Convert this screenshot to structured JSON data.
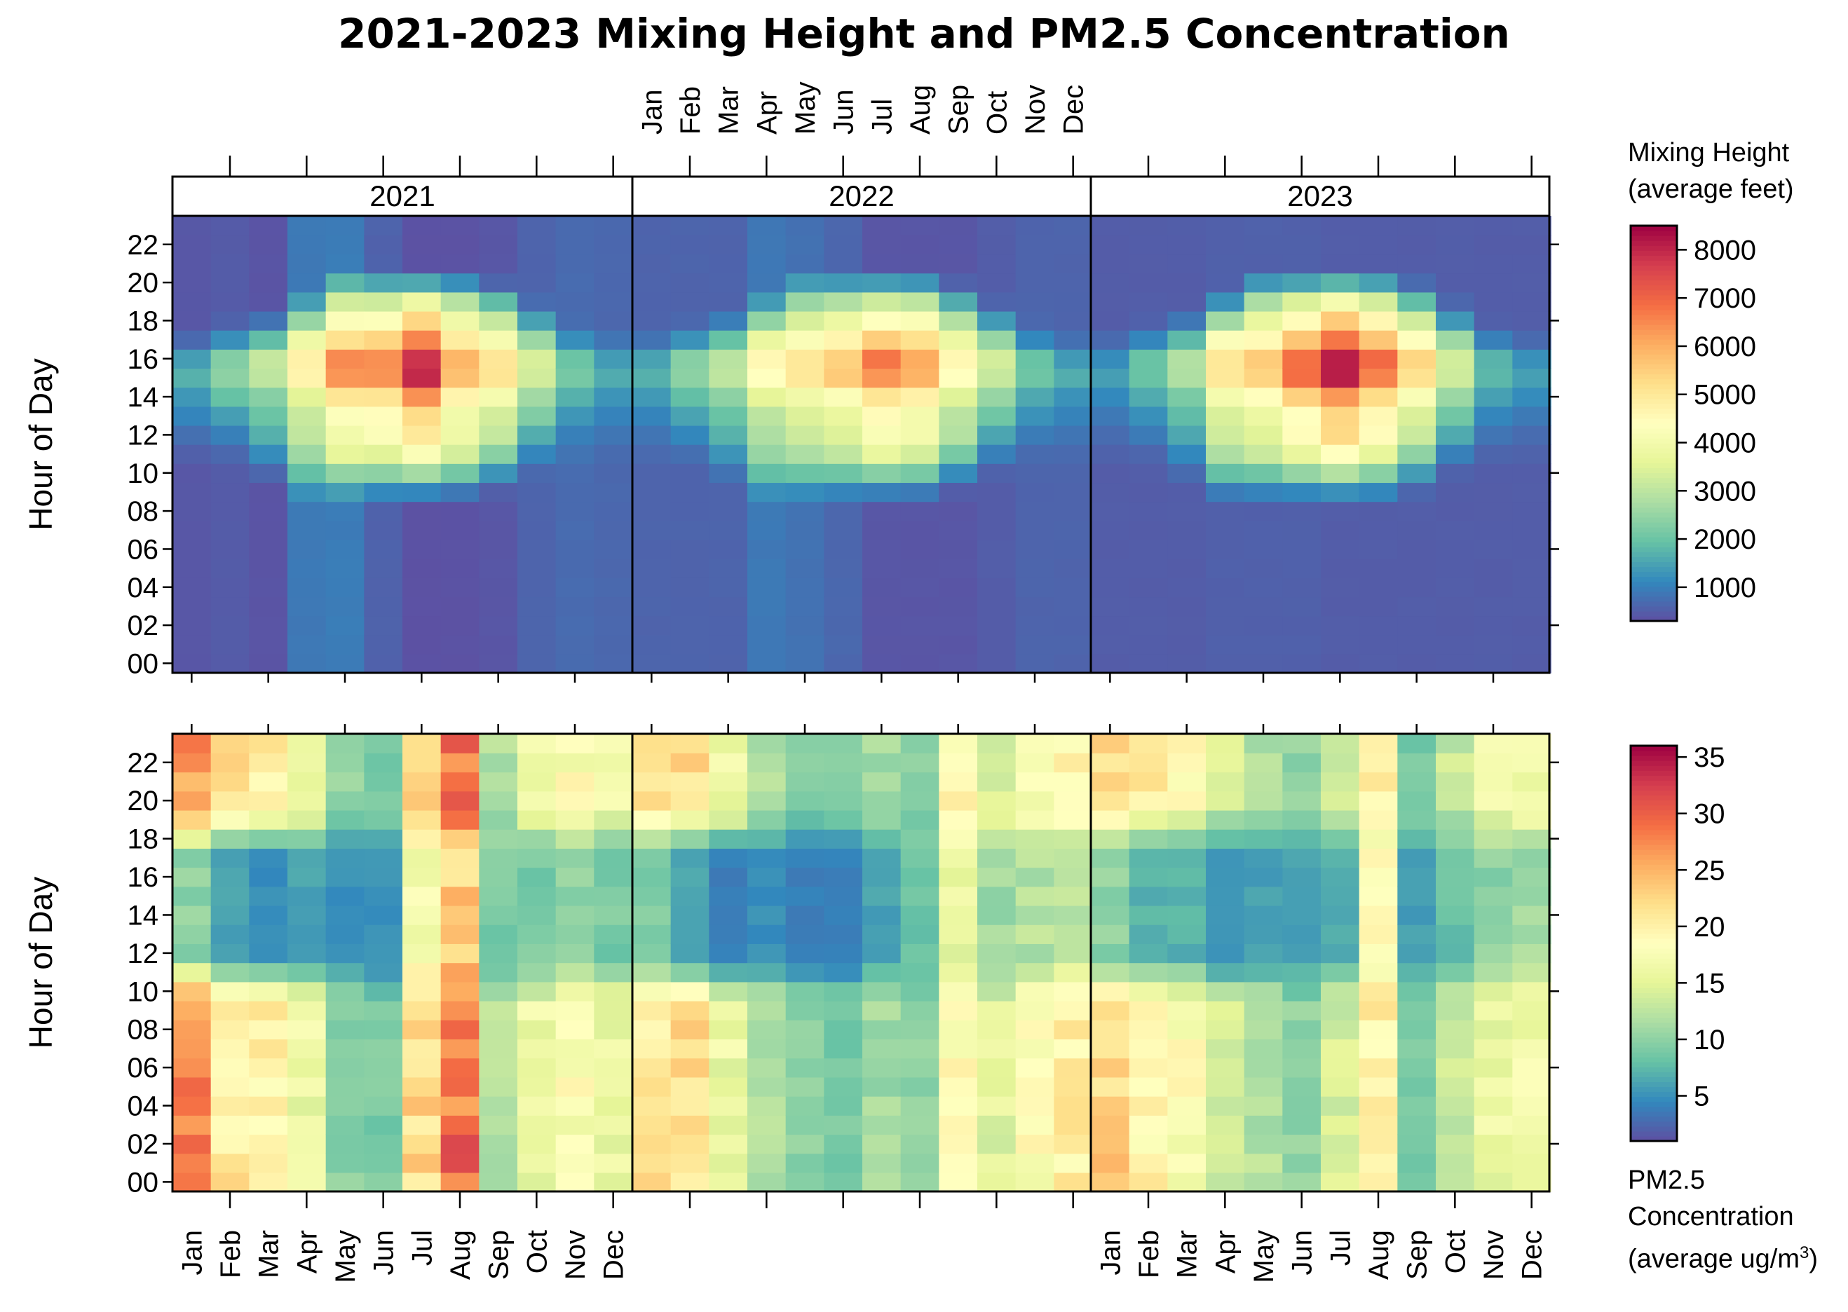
{
  "title": "2021-2023 Mixing Height and PM2.5 Concentration",
  "colors": {
    "scale": [
      "#5E4FA2",
      "#3288BD",
      "#66C2A5",
      "#ABDDA4",
      "#E6F598",
      "#FFFFBF",
      "#FEE08B",
      "#FDAE61",
      "#F46D43",
      "#D53E4F",
      "#9E0142"
    ],
    "frame": "#000000",
    "strip": "#ffffff"
  },
  "chart_data": [
    {
      "type": "heatmap",
      "position": "top",
      "panels": [
        "2021",
        "2022",
        "2023"
      ],
      "months": [
        "Jan",
        "Feb",
        "Mar",
        "Apr",
        "May",
        "Jun",
        "Jul",
        "Aug",
        "Sep",
        "Oct",
        "Nov",
        "Dec"
      ],
      "hours": [
        0,
        1,
        2,
        3,
        4,
        5,
        6,
        7,
        8,
        9,
        10,
        11,
        12,
        13,
        14,
        15,
        16,
        17,
        18,
        19,
        20,
        21,
        22,
        23
      ],
      "y_tick_labels": [
        "00",
        "02",
        "04",
        "06",
        "08",
        "10",
        "12",
        "14",
        "16",
        "18",
        "20",
        "22"
      ],
      "ylabel": "Hour of Day",
      "x_axis_months_visible": "top",
      "legend": {
        "title_lines": [
          "Mixing Height",
          "(average feet)"
        ],
        "ticks": [
          1000,
          2000,
          3000,
          4000,
          5000,
          6000,
          7000,
          8000
        ],
        "range": [
          300,
          8500
        ]
      },
      "profile": {
        "night_by_year": [
          [
            420,
            480,
            380,
            900,
            950,
            580,
            340,
            350,
            400,
            600,
            700,
            650
          ],
          [
            600,
            600,
            600,
            900,
            800,
            650,
            400,
            400,
            400,
            500,
            600,
            600
          ],
          [
            500,
            500,
            500,
            550,
            550,
            550,
            500,
            500,
            500,
            500,
            500,
            500
          ]
        ],
        "peak_by_year": [
          [
            1800,
            2500,
            3100,
            4800,
            6500,
            6700,
            8200,
            6100,
            5200,
            3500,
            2200,
            1700
          ],
          [
            1800,
            2500,
            3100,
            4600,
            5200,
            5700,
            6800,
            6300,
            4700,
            3300,
            2100,
            1700
          ],
          [
            1500,
            2100,
            2900,
            5200,
            5800,
            7000,
            8500,
            7000,
            5400,
            3400,
            1900,
            1500
          ]
        ],
        "rise_hour": [
          11,
          11,
          10,
          9,
          9,
          9,
          9,
          9,
          9.5,
          10.5,
          11,
          11
        ],
        "set_hour": [
          17,
          17.5,
          18,
          19,
          20,
          20,
          20,
          20,
          19.5,
          18.5,
          17.5,
          17
        ]
      }
    },
    {
      "type": "heatmap",
      "position": "bottom",
      "panels": [
        "2021",
        "2022",
        "2023"
      ],
      "months": [
        "Jan",
        "Feb",
        "Mar",
        "Apr",
        "May",
        "Jun",
        "Jul",
        "Aug",
        "Sep",
        "Oct",
        "Nov",
        "Dec"
      ],
      "hours": [
        0,
        1,
        2,
        3,
        4,
        5,
        6,
        7,
        8,
        9,
        10,
        11,
        12,
        13,
        14,
        15,
        16,
        17,
        18,
        19,
        20,
        21,
        22,
        23
      ],
      "y_tick_labels": [
        "00",
        "02",
        "04",
        "06",
        "08",
        "10",
        "12",
        "14",
        "16",
        "18",
        "20",
        "22"
      ],
      "ylabel": "Hour of Day",
      "x_axis_months_visible": "bottom, 2021 and 2023 panels",
      "legend": {
        "title_lines": [
          "PM2.5",
          "Concentration",
          "(average ug/m³)"
        ],
        "ticks": [
          5,
          10,
          15,
          20,
          25,
          30,
          35
        ],
        "range": [
          1,
          36
        ]
      },
      "profile": {
        "night_by_year": [
          [
            27,
            21,
            20,
            16,
            10,
            9,
            22,
            29,
            12,
            16,
            18,
            16
          ],
          [
            21,
            22,
            16,
            12,
            10,
            9,
            11,
            10,
            19,
            15,
            18,
            20
          ],
          [
            23,
            20,
            18,
            14,
            12,
            10,
            14,
            20,
            9,
            13,
            16,
            17
          ]
        ],
        "day_by_year": [
          [
            10,
            6,
            5,
            6,
            5,
            5,
            17,
            23,
            9,
            9,
            10,
            9
          ],
          [
            9,
            6,
            4,
            5,
            4,
            4,
            6,
            8,
            16,
            11,
            12,
            13
          ],
          [
            10,
            7,
            7,
            5,
            6,
            6,
            7,
            18,
            6,
            8,
            10,
            11
          ]
        ]
      }
    }
  ],
  "labels": {
    "top_legend_title_1": "Mixing Height",
    "top_legend_title_2": "(average feet)",
    "bottom_legend_title_1": "PM2.5",
    "bottom_legend_title_2": "Concentration",
    "bottom_legend_title_3": "(average ug/m",
    "bottom_legend_title_3_sup": "3",
    "bottom_legend_title_3_end": ")"
  }
}
